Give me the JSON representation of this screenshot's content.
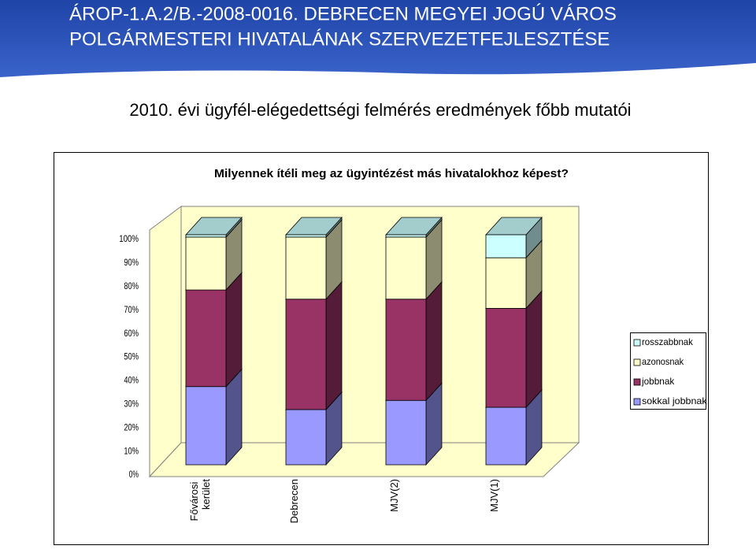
{
  "header": {
    "title_line1": "ÁROP-1.A.2/B.-2008-0016. DEBRECEN MEGYEI JOGÚ VÁROS",
    "title_line2": "POLGÁRMESTERI HIVATALÁNAK SZERVEZETFEJLESZTÉSE",
    "subtitle": "2010. évi ügyfél-elégedettségi felmérés eredmények főbb mutatói"
  },
  "chart_data": {
    "type": "stacked-bar-3d",
    "title": "Milyennek ítéli meg az ügyintézést más hivatalokhoz képest?",
    "categories": [
      "Fővárosi kerület",
      "Debrecen",
      "MJV(2)",
      "MJV(1)"
    ],
    "series": [
      {
        "name": "sokkal jobbnak",
        "color": "#9999ff",
        "values": [
          34,
          24,
          28,
          25
        ]
      },
      {
        "name": "jobbnak",
        "color": "#993366",
        "values": [
          42,
          48,
          44,
          43
        ]
      },
      {
        "name": "azonosnak",
        "color": "#ffffcc",
        "values": [
          23,
          27,
          27,
          22
        ]
      },
      {
        "name": "rosszabbnak",
        "color": "#ccffff",
        "values": [
          1,
          1,
          1,
          10
        ]
      }
    ],
    "ylim": [
      0,
      100
    ],
    "yticks": [
      {
        "value": 0,
        "label": "0%"
      },
      {
        "value": 10,
        "label": "10%"
      },
      {
        "value": 20,
        "label": "20%"
      },
      {
        "value": 30,
        "label": "30%"
      },
      {
        "value": 40,
        "label": "40%"
      },
      {
        "value": 50,
        "label": "50%"
      },
      {
        "value": 60,
        "label": "60%"
      },
      {
        "value": 70,
        "label": "70%"
      },
      {
        "value": 80,
        "label": "80%"
      },
      {
        "value": 90,
        "label": "90%"
      },
      {
        "value": 100,
        "label": "100%"
      }
    ],
    "legend": "right"
  }
}
